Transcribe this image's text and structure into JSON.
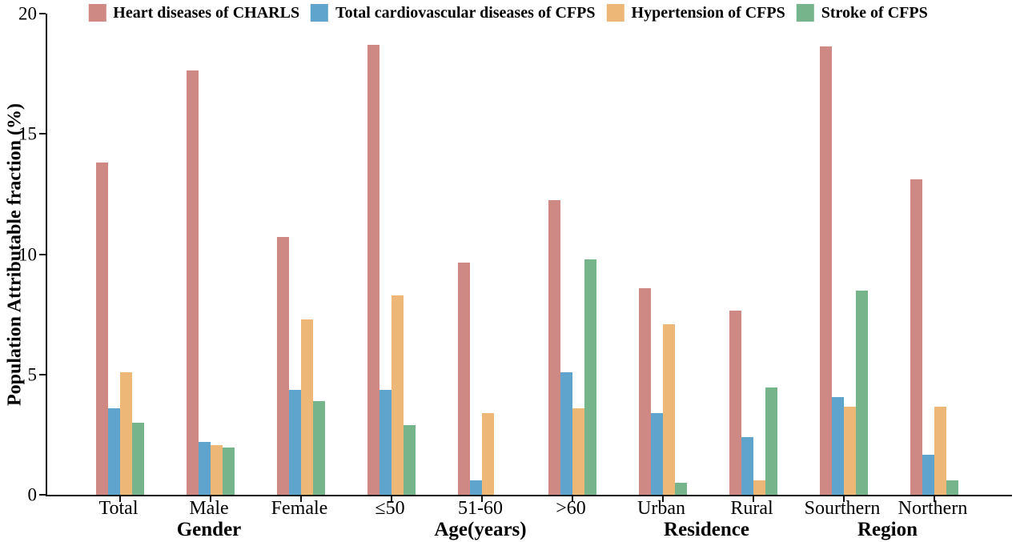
{
  "figure": {
    "background": "#ffffff",
    "axis_color": "#111111"
  },
  "chart_data": {
    "type": "bar",
    "title": "",
    "xlabel": "",
    "ylabel": "Population Attributable fraction (%)",
    "ylim": [
      0,
      20
    ],
    "yticks": [
      0,
      5,
      10,
      15,
      20
    ],
    "grid": "off",
    "legend_position": "top-center",
    "categories": [
      "Total",
      "Male",
      "Female",
      "≤50",
      "51-60",
      ">60",
      "Urban",
      "Rural",
      "Sourthern",
      "Northern"
    ],
    "category_groups": [
      {
        "label": "Gender",
        "span": [
          0,
          2
        ]
      },
      {
        "label": "Age(years)",
        "span": [
          3,
          5
        ]
      },
      {
        "label": "Residence",
        "span": [
          6,
          7
        ]
      },
      {
        "label": "Region",
        "span": [
          8,
          9
        ]
      }
    ],
    "series": [
      {
        "name": "Heart diseases of CHARLS",
        "color": "#CE8984",
        "values": [
          13.8,
          17.65,
          10.7,
          18.7,
          9.65,
          12.25,
          8.6,
          7.65,
          18.65,
          13.1
        ]
      },
      {
        "name": "Total cardiovascular diseases of CFPS",
        "color": "#5FA4CD",
        "values": [
          3.6,
          2.2,
          4.35,
          4.35,
          0.6,
          5.1,
          3.4,
          2.4,
          4.05,
          1.65
        ]
      },
      {
        "name": "Hypertension of CFPS",
        "color": "#EDB877",
        "values": [
          5.1,
          2.05,
          7.3,
          8.3,
          3.4,
          3.6,
          7.1,
          0.6,
          3.65,
          3.65
        ]
      },
      {
        "name": "Stroke of CFPS",
        "color": "#76B48B",
        "values": [
          3.0,
          1.95,
          3.9,
          2.9,
          0,
          9.8,
          0.5,
          4.45,
          8.5,
          0.6
        ]
      }
    ]
  }
}
